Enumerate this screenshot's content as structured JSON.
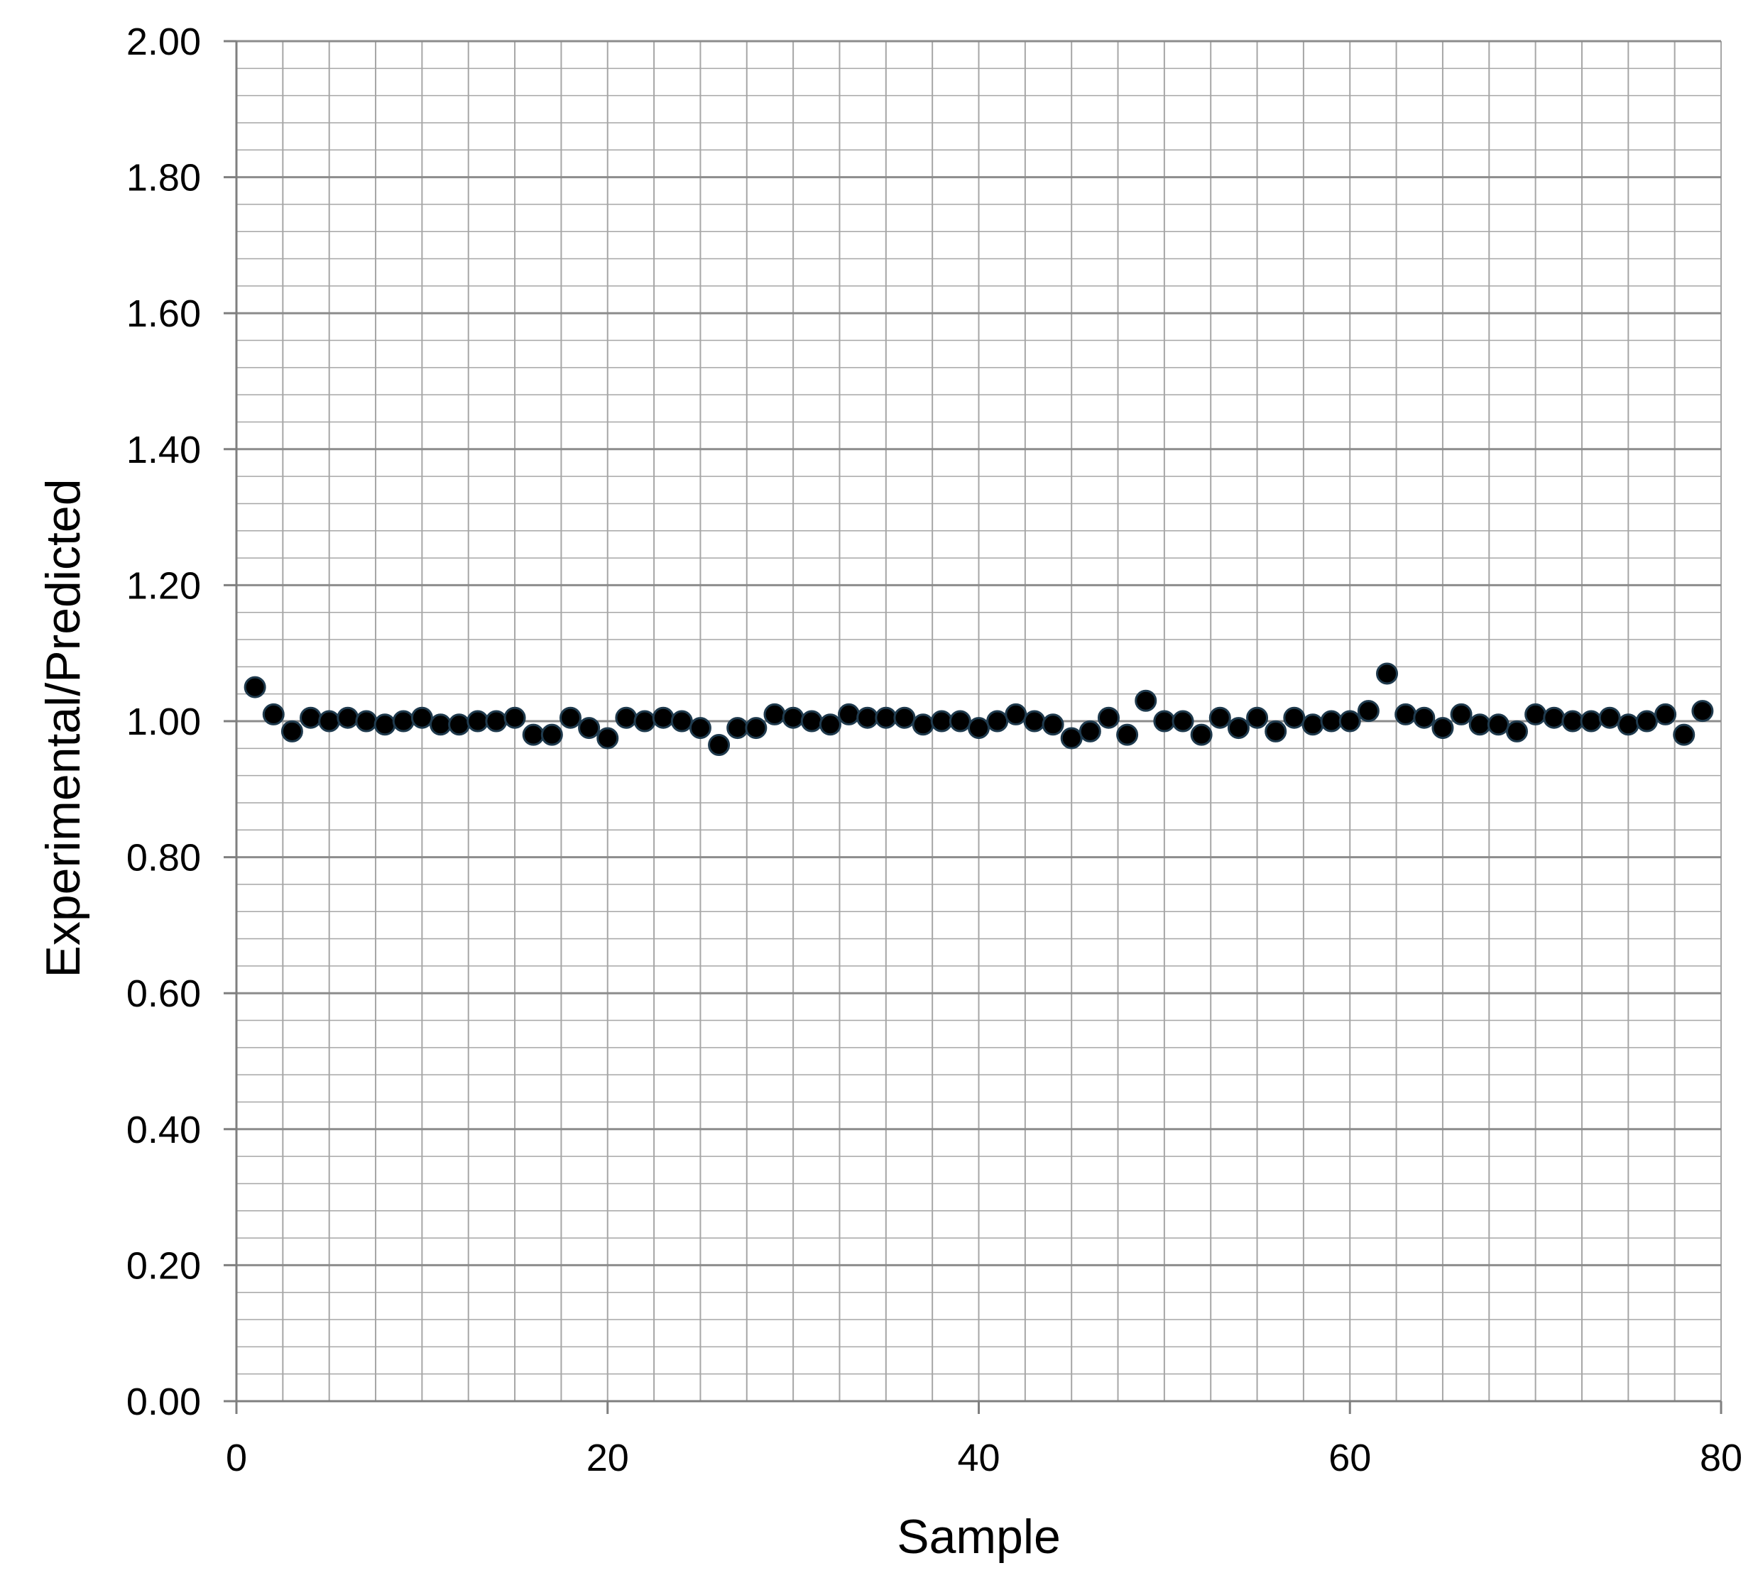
{
  "chart_data": {
    "type": "scatter",
    "title": "",
    "xlabel": "Sample",
    "ylabel": "Experimental/Predicted",
    "xlim": [
      0,
      80
    ],
    "ylim": [
      0,
      2
    ],
    "x_ticks": [
      "0",
      "20",
      "40",
      "60",
      "80"
    ],
    "y_ticks": [
      "0.00",
      "0.20",
      "0.40",
      "0.60",
      "0.80",
      "1.00",
      "1.20",
      "1.40",
      "1.60",
      "1.80",
      "2.00"
    ],
    "x_tick_values": [
      0,
      20,
      40,
      60,
      80
    ],
    "y_tick_values": [
      0,
      0.2,
      0.4,
      0.6,
      0.8,
      1.0,
      1.2,
      1.4,
      1.6,
      1.8,
      2.0
    ],
    "grid": true,
    "legend": "none",
    "colors": {
      "marker": "#000000",
      "marker_edge": "#1f3a4d",
      "grid": "#a6a6a6",
      "axis": "#7f7f7f"
    },
    "series": [
      {
        "x": [
          1,
          2,
          3,
          4,
          5,
          6,
          7,
          8,
          9,
          10,
          11,
          12,
          13,
          14,
          15,
          16,
          17,
          18,
          19,
          20,
          21,
          22,
          23,
          24,
          25,
          26,
          27,
          28,
          29,
          30,
          31,
          32,
          33,
          34,
          35,
          36,
          37,
          38,
          39,
          40,
          41,
          42,
          43,
          44,
          45,
          46,
          47,
          48,
          49,
          50,
          51,
          52,
          53,
          54,
          55,
          56,
          57,
          58,
          59,
          60,
          61,
          62,
          63,
          64,
          65,
          66,
          67,
          68,
          69,
          70,
          71,
          72,
          73,
          74,
          75,
          76,
          77,
          78,
          79
        ],
        "y": [
          1.05,
          1.01,
          0.985,
          1.005,
          1.0,
          1.005,
          1.0,
          0.995,
          1.0,
          1.005,
          0.995,
          0.995,
          1.0,
          1.0,
          1.005,
          0.98,
          0.98,
          1.005,
          0.99,
          0.975,
          1.005,
          1.0,
          1.005,
          1.0,
          0.99,
          0.965,
          0.99,
          0.99,
          1.01,
          1.005,
          1.0,
          0.995,
          1.01,
          1.005,
          1.005,
          1.005,
          0.995,
          1.0,
          1.0,
          0.99,
          1.0,
          1.01,
          1.0,
          0.995,
          0.975,
          0.985,
          1.005,
          0.98,
          1.03,
          1.0,
          1.0,
          0.98,
          1.005,
          0.99,
          1.005,
          0.985,
          1.005,
          0.995,
          1.0,
          1.0,
          1.015,
          1.07,
          1.01,
          1.005,
          0.99,
          1.01,
          0.995,
          0.995,
          0.985,
          1.01,
          1.005,
          1.0,
          1.0,
          1.005,
          0.995,
          1.0,
          1.01,
          0.98,
          1.015
        ]
      }
    ]
  }
}
